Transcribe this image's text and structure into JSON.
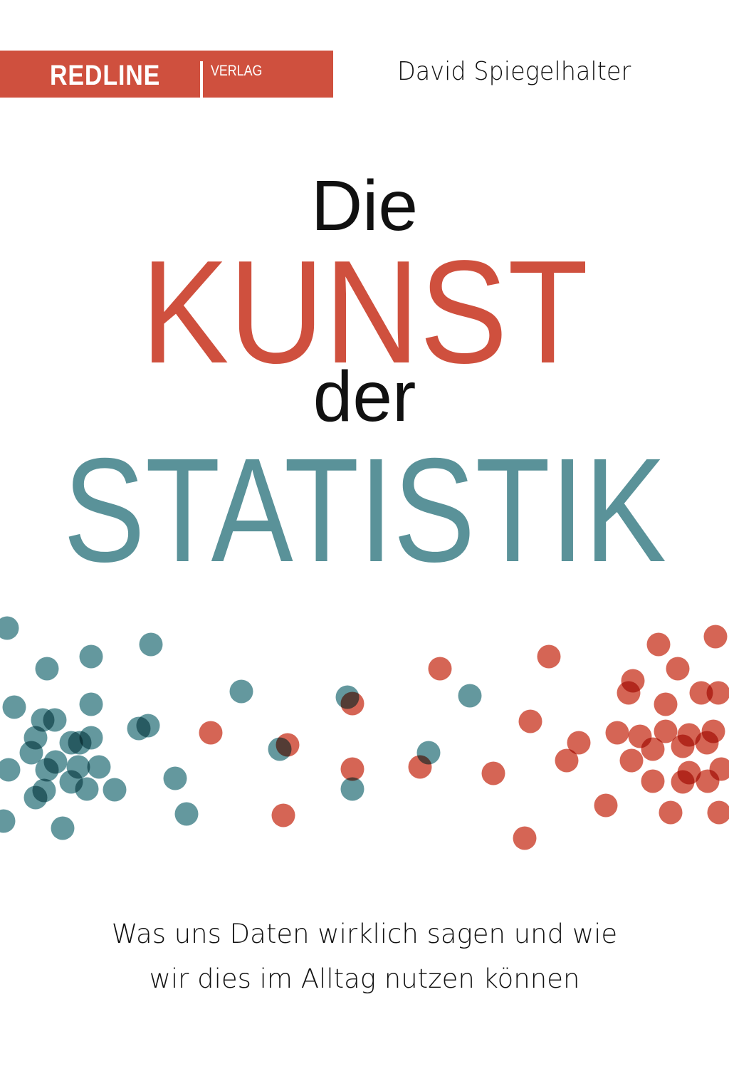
{
  "publisher": {
    "name": "REDLINE",
    "imprint": "VERLAG"
  },
  "author": "David Spiegelhalter",
  "title": {
    "line1": "Die",
    "line2": "KUNST",
    "line3": "der",
    "line4": "STATISTIK"
  },
  "subtitle": {
    "line1": "Was uns Daten wirklich sagen und wie",
    "line2": "wir dies im Alltag nutzen können"
  },
  "colors": {
    "brand_red": "#cf503e",
    "teal": "#4f8a91",
    "text": "#111111"
  }
}
